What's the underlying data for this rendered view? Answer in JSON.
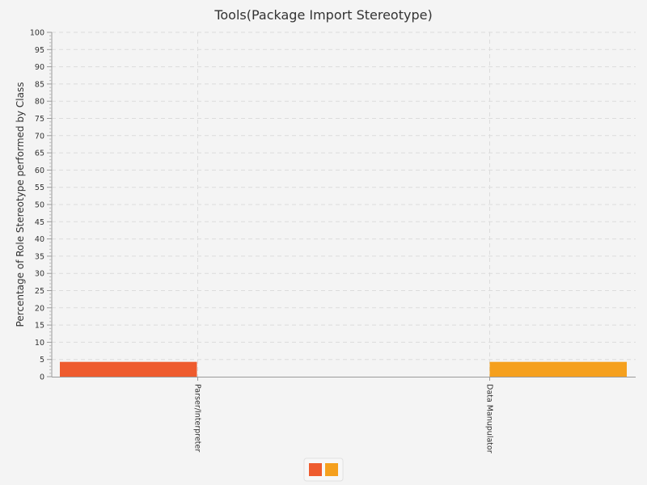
{
  "chart_data": {
    "type": "bar",
    "title": "Tools(Package Import Stereotype)",
    "xlabel": "",
    "ylabel": "Percentage of Role Stereotype performed by Class",
    "categories": [
      "Parser/Interpreter",
      "Data Manupulator"
    ],
    "series": [
      {
        "values": [
          4.3,
          0
        ],
        "color": "#ee5b2e"
      },
      {
        "values": [
          0,
          4.3
        ],
        "color": "#f5a01e"
      }
    ],
    "ylim": [
      0,
      100
    ],
    "y_ticks": [
      0,
      5,
      10,
      15,
      20,
      25,
      30,
      35,
      40,
      45,
      50,
      55,
      60,
      65,
      70,
      75,
      80,
      85,
      90,
      95,
      100
    ],
    "grid": true,
    "legend_position": "bottom-center"
  }
}
